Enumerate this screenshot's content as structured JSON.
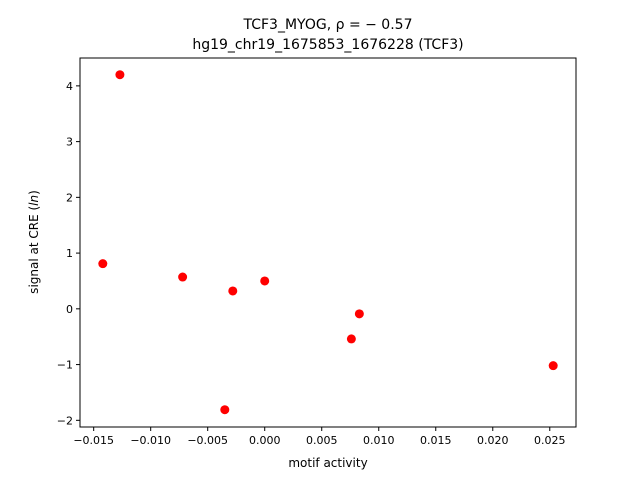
{
  "chart_data": {
    "type": "scatter",
    "title_line1": "TCF3_MYOG, ρ = − 0.57",
    "title_line2": "hg19_chr19_1675853_1676228 (TCF3)",
    "xlabel": "motif activity",
    "ylabel": "signal at CRE (ln)",
    "xlim": [
      -0.0162,
      0.0273
    ],
    "ylim": [
      -2.12,
      4.5
    ],
    "xticks": [
      -0.015,
      -0.01,
      -0.005,
      0.0,
      0.005,
      0.01,
      0.015,
      0.02,
      0.025
    ],
    "xtick_labels": [
      "−0.015",
      "−0.010",
      "−0.005",
      "0.000",
      "0.005",
      "0.010",
      "0.015",
      "0.020",
      "0.025"
    ],
    "yticks": [
      -2,
      -1,
      0,
      1,
      2,
      3,
      4
    ],
    "ytick_labels": [
      "−2",
      "−1",
      "0",
      "1",
      "2",
      "3",
      "4"
    ],
    "grid": false,
    "marker_color": "#ff0000",
    "points": [
      {
        "x": -0.0127,
        "y": 4.2
      },
      {
        "x": -0.0142,
        "y": 0.81
      },
      {
        "x": -0.0072,
        "y": 0.57
      },
      {
        "x": -0.0028,
        "y": 0.32
      },
      {
        "x": 0.0,
        "y": 0.5
      },
      {
        "x": -0.0035,
        "y": -1.81
      },
      {
        "x": 0.0076,
        "y": -0.54
      },
      {
        "x": 0.0083,
        "y": -0.09
      },
      {
        "x": 0.0253,
        "y": -1.02
      }
    ]
  }
}
